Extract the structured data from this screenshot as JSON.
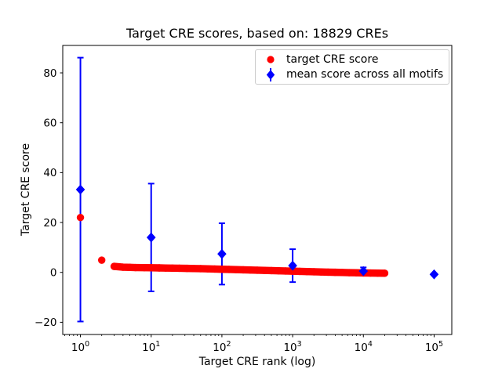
{
  "chart_data": {
    "type": "scatter",
    "title": "Target CRE scores, based on: 18829 CREs",
    "xlabel": "Target CRE rank (log)",
    "ylabel": "Target CRE score",
    "x_scale": "log",
    "xlim_log10": [
      -0.25,
      5.25
    ],
    "ylim": [
      -24.9,
      91.0
    ],
    "x_ticks_exponents": [
      0,
      1,
      2,
      3,
      4,
      5
    ],
    "y_ticks": [
      -20,
      0,
      20,
      40,
      60,
      80
    ],
    "n_cres": 18829,
    "grid": false,
    "legend_position": "upper right",
    "colors": {
      "target": "#ff0000",
      "mean": "#0000ff",
      "legend_border": "#cccccc",
      "text": "#000000",
      "background": "#ffffff"
    },
    "series": [
      {
        "name": "target CRE score",
        "marker": "circle",
        "color": "#ff0000",
        "points": [
          [
            1,
            22.0
          ],
          [
            2,
            4.9
          ],
          [
            3,
            2.4
          ],
          [
            4,
            2.1
          ],
          [
            5,
            2.0
          ],
          [
            6,
            1.95
          ],
          [
            8,
            1.9
          ],
          [
            10,
            1.85
          ],
          [
            13,
            1.8
          ],
          [
            16,
            1.75
          ],
          [
            20,
            1.7
          ],
          [
            25,
            1.65
          ],
          [
            32,
            1.6
          ],
          [
            40,
            1.55
          ],
          [
            50,
            1.5
          ],
          [
            63,
            1.43
          ],
          [
            79,
            1.35
          ],
          [
            100,
            1.25
          ],
          [
            126,
            1.18
          ],
          [
            158,
            1.1
          ],
          [
            200,
            1.02
          ],
          [
            251,
            0.95
          ],
          [
            316,
            0.88
          ],
          [
            398,
            0.8
          ],
          [
            501,
            0.72
          ],
          [
            631,
            0.64
          ],
          [
            794,
            0.56
          ],
          [
            1000,
            0.48
          ],
          [
            1259,
            0.4
          ],
          [
            1585,
            0.32
          ],
          [
            2000,
            0.25
          ],
          [
            2512,
            0.18
          ],
          [
            3162,
            0.1
          ],
          [
            3981,
            0.03
          ],
          [
            5012,
            -0.04
          ],
          [
            6310,
            -0.1
          ],
          [
            7943,
            -0.16
          ],
          [
            10000,
            -0.22
          ],
          [
            12589,
            -0.27
          ],
          [
            15849,
            -0.3
          ],
          [
            20000,
            -0.33
          ]
        ]
      },
      {
        "name": "mean score across all motifs",
        "marker": "diamond",
        "color": "#0000ff",
        "errorbar": true,
        "points": [
          {
            "x": 1,
            "mean": 33.2,
            "std": 52.9
          },
          {
            "x": 10,
            "mean": 14.0,
            "std": 21.6
          },
          {
            "x": 100,
            "mean": 7.4,
            "std": 12.3
          },
          {
            "x": 1000,
            "mean": 2.7,
            "std": 6.6
          },
          {
            "x": 10000,
            "mean": 0.5,
            "std": 1.5
          },
          {
            "x": 100000,
            "mean": -0.8,
            "std": 0.4
          }
        ]
      }
    ]
  }
}
